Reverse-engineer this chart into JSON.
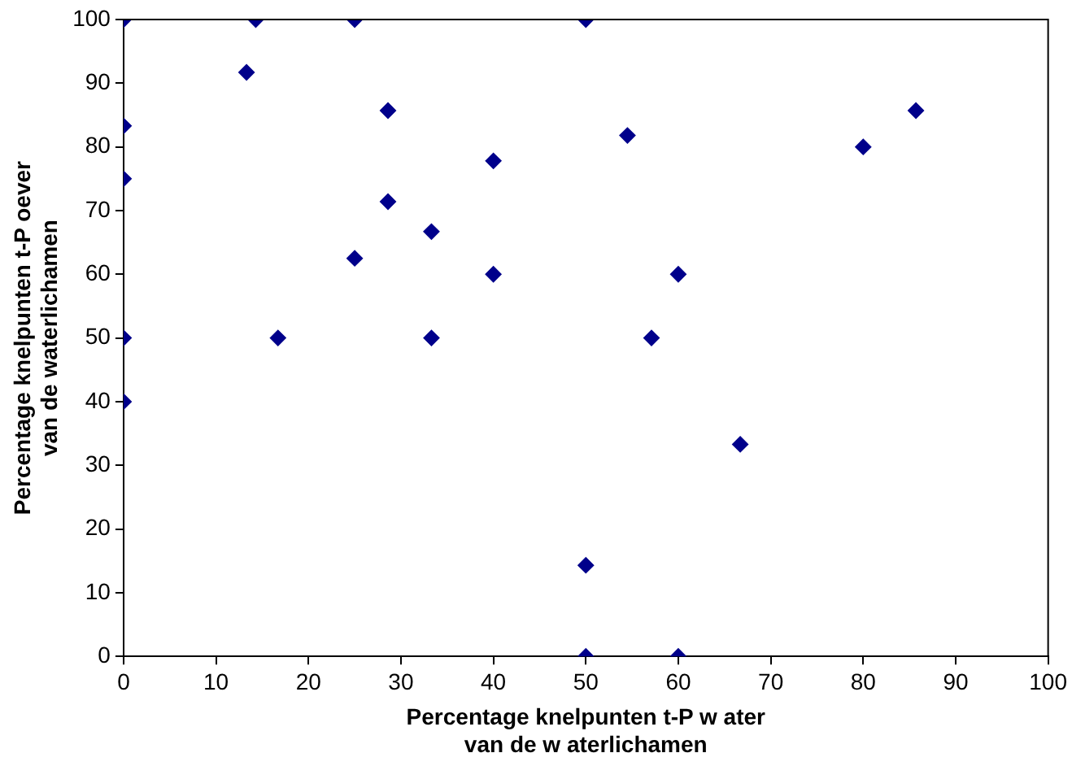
{
  "chart_data": {
    "type": "scatter",
    "xlabel": "Percentage knelpunten t-P w ater\nvan de w aterlichamen",
    "ylabel": "Percentage knelpunten t-P oever\nvan de waterlichamen",
    "marker": "diamond",
    "xlim": [
      0,
      100
    ],
    "ylim": [
      0,
      100
    ],
    "xticks": [
      0,
      10,
      20,
      30,
      40,
      50,
      60,
      70,
      80,
      90,
      100
    ],
    "yticks": [
      0,
      10,
      20,
      30,
      40,
      50,
      60,
      70,
      80,
      90,
      100
    ],
    "series": [
      {
        "color": "#00008b",
        "x": [
          0,
          0,
          0,
          0,
          0,
          14.3,
          25,
          50,
          13.3,
          28.6,
          40,
          54.5,
          80,
          85.7,
          28.6,
          33.3,
          25,
          40,
          60,
          16.7,
          33.3,
          57.1,
          66.7,
          50,
          50,
          60
        ],
        "values": [
          100,
          83.3,
          75,
          50,
          40,
          100,
          100,
          100,
          91.7,
          85.7,
          77.8,
          81.8,
          80,
          85.7,
          71.4,
          66.7,
          62.5,
          60,
          60,
          50,
          50,
          50,
          33.3,
          14.3,
          0,
          0
        ]
      }
    ]
  }
}
